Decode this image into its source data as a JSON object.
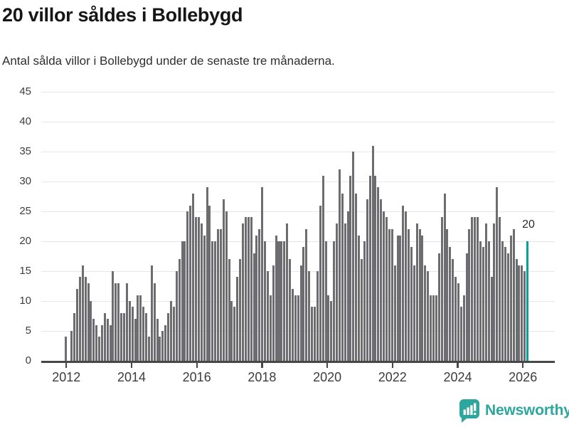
{
  "header": {
    "title": "20 villor såldes i Bollebygd",
    "subtitle": "Antal sålda villor i Bollebygd under de senaste tre månaderna."
  },
  "chart_data": {
    "type": "bar",
    "title": "20 villor såldes i Bollebygd",
    "subtitle": "Antal sålda villor i Bollebygd under de senaste tre månaderna.",
    "x_start": "2012-01",
    "x_end": "2026",
    "x_tick_labels": [
      "2012",
      "2014",
      "2016",
      "2018",
      "2020",
      "2022",
      "2024",
      "2026"
    ],
    "y_tick_labels": [
      0,
      5,
      10,
      15,
      20,
      25,
      30,
      35,
      40,
      45
    ],
    "ylim": [
      0,
      45
    ],
    "grid": "horizontal",
    "legend": "none",
    "values": [
      4,
      null,
      5,
      8,
      12,
      14,
      16,
      14,
      13,
      10,
      7,
      6,
      4,
      6,
      8,
      7,
      6,
      15,
      13,
      13,
      8,
      8,
      13,
      10,
      9,
      7,
      11,
      11,
      9,
      8,
      4,
      16,
      13,
      7,
      4,
      5,
      6,
      8,
      10,
      9,
      15,
      17,
      20,
      20,
      25,
      26,
      28,
      24,
      24,
      23,
      21,
      29,
      26,
      20,
      20,
      22,
      22,
      27,
      25,
      17,
      10,
      9,
      14,
      17,
      23,
      24,
      24,
      24,
      18,
      21,
      22,
      29,
      20,
      15,
      11,
      16,
      21,
      20,
      20,
      20,
      23,
      17,
      12,
      11,
      11,
      16,
      19,
      22,
      15,
      9,
      9,
      15,
      26,
      31,
      20,
      11,
      10,
      20,
      23,
      32,
      28,
      23,
      25,
      31,
      35,
      28,
      21,
      17,
      20,
      27,
      31,
      36,
      31,
      29,
      27,
      25,
      24,
      22,
      22,
      16,
      21,
      21,
      26,
      25,
      22,
      19,
      16,
      23,
      22,
      21,
      16,
      15,
      11,
      11,
      11,
      18,
      24,
      28,
      22,
      19,
      17,
      14,
      13,
      9,
      11,
      18,
      22,
      24,
      24,
      24,
      20,
      19,
      23,
      20,
      14,
      23,
      29,
      24,
      20,
      19,
      18,
      21,
      22,
      17,
      16,
      16,
      15,
      20
    ],
    "highlight_index": 167,
    "highlight_value": 20,
    "annotation": {
      "text": "20"
    }
  },
  "watermark": {
    "text": "Newsworthy",
    "icon": "newsworthy-speech-bubble-bar-chart-icon"
  },
  "colors": {
    "bar": "#6d6d71",
    "highlight": "#00a49c",
    "gridline": "#e7e7e7",
    "axis": "#474747",
    "tick_text": "#3d3d3d",
    "title_text": "#161616",
    "subtitle_text": "#2e2e2e",
    "annotation_text": "#2b2b2b",
    "logo_teal": "#2da69d"
  }
}
